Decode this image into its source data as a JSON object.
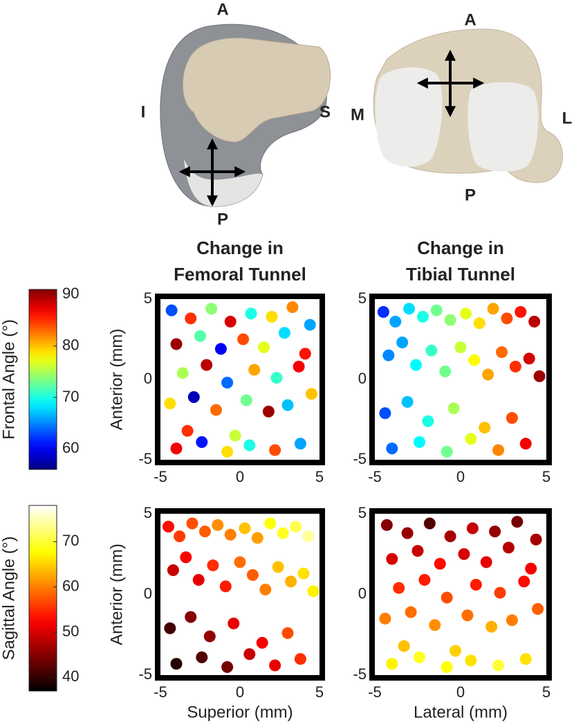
{
  "anatomy": {
    "femur": {
      "anterior": "A",
      "inferior": "I",
      "superior": "S",
      "posterior": "P"
    },
    "tibia": {
      "anterior": "A",
      "medial": "M",
      "lateral": "L",
      "posterior": "P"
    }
  },
  "chart_data": [
    {
      "type": "colorbar",
      "label": "Frontal Angle (°)",
      "colormap": "jet",
      "clim": [
        56,
        91
      ],
      "ticks": [
        60,
        70,
        80,
        90
      ]
    },
    {
      "type": "colorbar",
      "label": "Sagittal Angle (°)",
      "colormap": "hot",
      "clim": [
        37,
        78
      ],
      "ticks": [
        40,
        50,
        60,
        70
      ]
    },
    {
      "type": "scatter",
      "title": [
        "Change in",
        "Femoral Tunnel"
      ],
      "ylabel": "Anterior (mm)",
      "colormap": "jet",
      "xlim": [
        -5,
        5
      ],
      "ylim": [
        -5,
        5
      ],
      "xticks": [
        -5,
        0,
        5
      ],
      "yticks": [
        -5,
        0,
        5
      ],
      "x": [
        -4.3,
        -3.1,
        -1.8,
        -0.6,
        0.7,
        2.0,
        3.3,
        4.4,
        -4.0,
        -2.5,
        -1.2,
        0.2,
        1.5,
        2.8,
        4.1,
        -3.6,
        -2.1,
        -0.8,
        0.9,
        2.3,
        3.7,
        -4.4,
        -2.9,
        -1.5,
        0.4,
        1.8,
        3.0,
        4.5,
        -3.3,
        -0.3,
        -4.0,
        -2.4,
        -0.8,
        0.6,
        2.2,
        3.8
      ],
      "y": [
        4.3,
        3.8,
        4.4,
        3.6,
        4.1,
        3.9,
        4.5,
        3.4,
        2.2,
        2.7,
        1.9,
        2.5,
        2.0,
        2.9,
        1.6,
        0.4,
        0.9,
        -0.2,
        0.6,
        0.1,
        0.8,
        -1.5,
        -1.1,
        -1.9,
        -1.3,
        -2.0,
        -1.6,
        -0.9,
        -3.2,
        -3.5,
        -4.3,
        -3.9,
        -4.5,
        -4.1,
        -4.4,
        -4.0
      ],
      "c": [
        63,
        85,
        74,
        88,
        70,
        79,
        82,
        66,
        90,
        72,
        60,
        84,
        77,
        68,
        86,
        75,
        89,
        64,
        81,
        71,
        87,
        79,
        58,
        83,
        73,
        90,
        67,
        80,
        85,
        76,
        87,
        61,
        79,
        70,
        84,
        66
      ]
    },
    {
      "type": "scatter",
      "title": [
        "Change in",
        "Tibial Tunnel"
      ],
      "colormap": "jet",
      "xlim": [
        -5,
        5
      ],
      "ylim": [
        -5,
        5
      ],
      "xticks": [
        -5,
        0,
        5
      ],
      "yticks": [
        -5,
        0,
        5
      ],
      "x": [
        -4.5,
        -3.8,
        -3.0,
        -2.2,
        -1.4,
        -0.6,
        0.3,
        1.1,
        1.9,
        2.7,
        3.5,
        4.3,
        -4.2,
        -3.4,
        -2.6,
        -1.7,
        -0.9,
        0.0,
        0.8,
        1.6,
        2.4,
        3.2,
        4.0,
        4.6,
        -4.4,
        -3.1,
        -1.9,
        -0.4,
        1.4,
        3.0,
        -4.0,
        -2.4,
        -0.8,
        0.6,
        2.2,
        3.8
      ],
      "y": [
        4.2,
        3.6,
        4.4,
        3.9,
        4.3,
        3.7,
        4.1,
        3.5,
        4.4,
        3.8,
        4.2,
        3.6,
        1.5,
        2.3,
        0.9,
        1.8,
        0.5,
        2.0,
        1.2,
        0.3,
        1.7,
        0.8,
        1.3,
        0.2,
        -2.1,
        -1.4,
        -2.6,
        -1.8,
        -3.0,
        -2.4,
        -4.3,
        -3.9,
        -4.5,
        -3.7,
        -4.4,
        -4.0
      ],
      "c": [
        62,
        66,
        68,
        70,
        73,
        74,
        77,
        79,
        81,
        84,
        86,
        89,
        65,
        66,
        69,
        71,
        73,
        76,
        78,
        81,
        83,
        85,
        88,
        90,
        63,
        67,
        70,
        75,
        80,
        84,
        64,
        69,
        73,
        77,
        82,
        87
      ]
    },
    {
      "type": "scatter",
      "ylabel": "Anterior (mm)",
      "xlabel": "Superior (mm)",
      "colormap": "hot",
      "xlim": [
        -5,
        5
      ],
      "ylim": [
        -5,
        5
      ],
      "xticks": [
        -5,
        0,
        5
      ],
      "yticks": [
        -5,
        0,
        5
      ],
      "x": [
        -4.5,
        -3.8,
        -3.0,
        -2.2,
        -1.4,
        -0.6,
        0.3,
        1.1,
        1.9,
        2.7,
        3.5,
        4.3,
        -4.2,
        -3.4,
        -2.6,
        -1.7,
        -0.9,
        0.0,
        0.8,
        1.6,
        2.4,
        3.2,
        4.0,
        4.6,
        -4.4,
        -3.1,
        -1.9,
        -0.4,
        1.4,
        3.0,
        -4.0,
        -2.4,
        -0.8,
        0.6,
        2.2,
        3.8
      ],
      "y": [
        4.2,
        3.6,
        4.4,
        3.9,
        4.3,
        3.7,
        4.1,
        3.5,
        4.4,
        3.8,
        4.2,
        3.6,
        1.5,
        2.3,
        0.9,
        1.8,
        0.5,
        2.0,
        1.2,
        0.3,
        1.7,
        0.8,
        1.3,
        0.2,
        -2.1,
        -1.4,
        -2.6,
        -1.8,
        -3.0,
        -2.4,
        -4.3,
        -3.9,
        -4.5,
        -3.7,
        -4.4,
        -4.0
      ],
      "c": [
        53,
        56,
        57,
        58,
        61,
        60,
        64,
        62,
        68,
        69,
        71,
        74,
        49,
        52,
        51,
        55,
        54,
        59,
        58,
        60,
        64,
        63,
        66,
        67,
        41,
        45,
        46,
        51,
        52,
        57,
        39,
        42,
        44,
        49,
        51,
        55
      ]
    },
    {
      "type": "scatter",
      "xlabel": "Lateral (mm)",
      "colormap": "hot",
      "xlim": [
        -5,
        5
      ],
      "ylim": [
        -5,
        5
      ],
      "xticks": [
        -5,
        0,
        5
      ],
      "yticks": [
        -5,
        0,
        5
      ],
      "x": [
        -4.3,
        -3.1,
        -1.8,
        -0.6,
        0.7,
        2.0,
        3.3,
        4.4,
        -4.0,
        -2.5,
        -1.2,
        0.2,
        1.5,
        2.8,
        4.1,
        -3.6,
        -2.1,
        -0.8,
        0.9,
        2.3,
        3.7,
        -4.4,
        -2.9,
        -1.5,
        0.4,
        1.8,
        3.0,
        4.5,
        -3.3,
        -0.3,
        -4.0,
        -2.4,
        -0.8,
        0.6,
        2.2,
        3.8
      ],
      "y": [
        4.3,
        3.8,
        4.4,
        3.6,
        4.1,
        3.9,
        4.5,
        3.4,
        2.2,
        2.7,
        1.9,
        2.5,
        2.0,
        2.9,
        1.6,
        0.4,
        0.9,
        -0.2,
        0.6,
        0.1,
        0.8,
        -1.5,
        -1.1,
        -1.9,
        -1.3,
        -2.0,
        -1.6,
        -0.9,
        -3.2,
        -3.5,
        -4.3,
        -3.9,
        -4.5,
        -4.1,
        -4.4,
        -4.0
      ],
      "c": [
        45,
        46,
        42,
        47,
        49,
        46,
        44,
        47,
        50,
        49,
        53,
        50,
        51,
        48,
        52,
        55,
        54,
        57,
        54,
        56,
        53,
        60,
        59,
        61,
        59,
        63,
        60,
        58,
        64,
        65,
        67,
        69,
        68,
        66,
        70,
        66
      ]
    }
  ]
}
